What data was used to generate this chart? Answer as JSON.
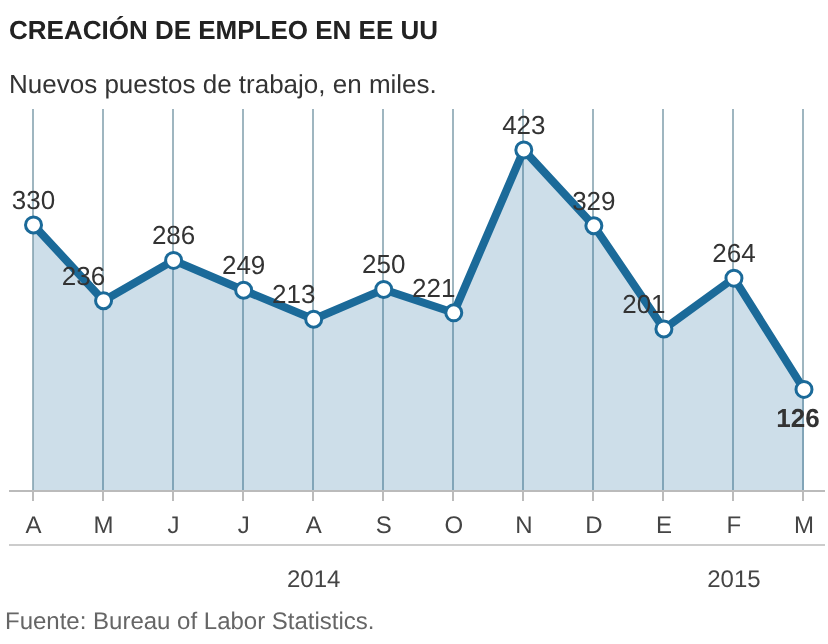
{
  "chart_data": {
    "type": "area",
    "title": "CREACIÓN DE EMPLEO EN EE UU",
    "subtitle": "Nuevos puestos de trabajo, en miles.",
    "categories": [
      "A",
      "M",
      "J",
      "J",
      "A",
      "S",
      "O",
      "N",
      "D",
      "E",
      "F",
      "M"
    ],
    "series": [
      {
        "color": "#1b6a99",
        "values": [
          330,
          236,
          286,
          249,
          213,
          250,
          221,
          423,
          329,
          201,
          264,
          126
        ]
      }
    ],
    "data_labels": true,
    "marker": "circle",
    "grid": "x",
    "tick_labels": "x",
    "annotations": [
      "2014",
      "2015",
      "Fuente: Bureau of Labor Statistics."
    ]
  }
}
